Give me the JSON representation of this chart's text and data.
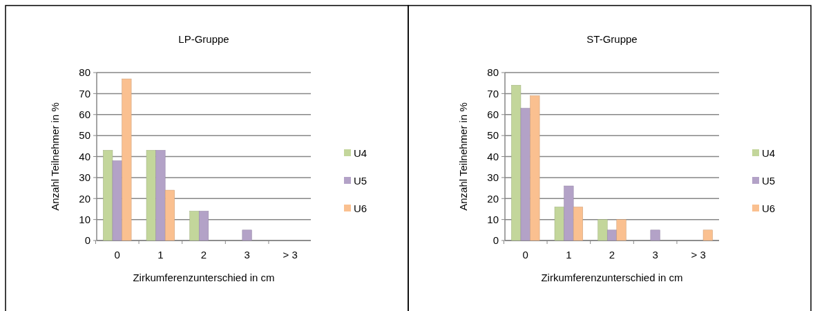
{
  "chart_data": [
    {
      "type": "bar",
      "title": "LP-Gruppe",
      "xlabel": "Zirkumferenzunterschied in cm",
      "ylabel": "Anzahl Teilnehmer  in %",
      "categories": [
        "0",
        "1",
        "2",
        "3",
        "> 3"
      ],
      "series": [
        {
          "name": "U4",
          "color": "#c3d69b",
          "values": [
            43,
            43,
            14,
            0,
            0
          ]
        },
        {
          "name": "U5",
          "color": "#b3a2c7",
          "values": [
            38,
            43,
            14,
            5,
            0
          ]
        },
        {
          "name": "U6",
          "color": "#fac090",
          "values": [
            77,
            24,
            0,
            0,
            0
          ]
        }
      ],
      "ylim": [
        0,
        80
      ],
      "yticks": [
        0,
        10,
        20,
        30,
        40,
        50,
        60,
        70,
        80
      ],
      "grid": "y",
      "legend": "right"
    },
    {
      "type": "bar",
      "title": "ST-Gruppe",
      "xlabel": "Zirkumferenzunterschied in cm",
      "ylabel": "Anzahl Teilnehmer in %",
      "categories": [
        "0",
        "1",
        "2",
        "3",
        "> 3"
      ],
      "series": [
        {
          "name": "U4",
          "color": "#c3d69b",
          "values": [
            74,
            16,
            10,
            0,
            0
          ]
        },
        {
          "name": "U5",
          "color": "#b3a2c7",
          "values": [
            63,
            26,
            5,
            5,
            0
          ]
        },
        {
          "name": "U6",
          "color": "#fac090",
          "values": [
            69,
            16,
            10,
            0,
            5
          ]
        }
      ],
      "ylim": [
        0,
        80
      ],
      "yticks": [
        0,
        10,
        20,
        30,
        40,
        50,
        60,
        70,
        80
      ],
      "grid": "y",
      "legend": "right"
    }
  ]
}
